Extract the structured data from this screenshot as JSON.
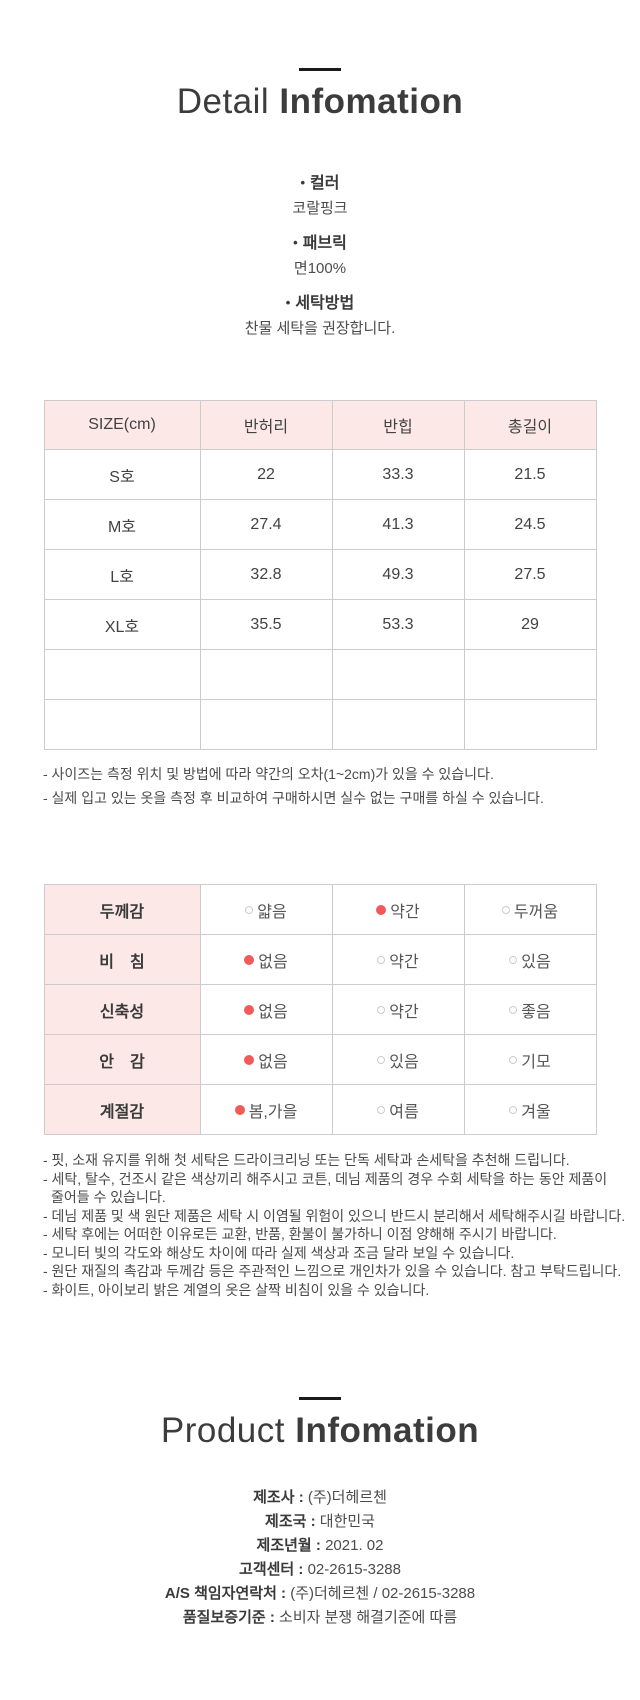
{
  "detail": {
    "title_light": "Detail",
    "title_bold": "Infomation",
    "bullet": "•",
    "specs": [
      {
        "label": "컬러",
        "value": "코랄핑크"
      },
      {
        "label": "패브릭",
        "value": "면100%"
      },
      {
        "label": "세탁방법",
        "value": "찬물 세탁을 권장합니다."
      }
    ],
    "size_table": {
      "headers": [
        "SIZE(cm)",
        "반허리",
        "반힙",
        "총길이"
      ],
      "rows": [
        [
          "S호",
          "22",
          "33.3",
          "21.5"
        ],
        [
          "M호",
          "27.4",
          "41.3",
          "24.5"
        ],
        [
          "L호",
          "32.8",
          "49.3",
          "27.5"
        ],
        [
          "XL호",
          "35.5",
          "53.3",
          "29"
        ],
        [
          "",
          "",
          "",
          ""
        ],
        [
          "",
          "",
          "",
          ""
        ]
      ]
    },
    "size_notes": [
      "- 사이즈는 측정 위치 및 방법에 따라 약간의 오차(1~2cm)가 있을 수 있습니다.",
      "- 실제 입고 있는 옷을 측정 후 비교하여 구매하시면 실수 없는 구매를 하실 수 있습니다."
    ],
    "attributes": [
      {
        "label": "두께감",
        "options": [
          {
            "text": "얇음",
            "selected": false
          },
          {
            "text": "약간",
            "selected": true
          },
          {
            "text": "두꺼움",
            "selected": false
          }
        ]
      },
      {
        "label": "비　침",
        "options": [
          {
            "text": "없음",
            "selected": true
          },
          {
            "text": "약간",
            "selected": false
          },
          {
            "text": "있음",
            "selected": false
          }
        ]
      },
      {
        "label": "신축성",
        "options": [
          {
            "text": "없음",
            "selected": true
          },
          {
            "text": "약간",
            "selected": false
          },
          {
            "text": "좋음",
            "selected": false
          }
        ]
      },
      {
        "label": "안　감",
        "options": [
          {
            "text": "없음",
            "selected": true
          },
          {
            "text": "있음",
            "selected": false
          },
          {
            "text": "기모",
            "selected": false
          }
        ]
      },
      {
        "label": "계절감",
        "options": [
          {
            "text": "봄,가을",
            "selected": true
          },
          {
            "text": "여름",
            "selected": false
          },
          {
            "text": "겨울",
            "selected": false
          }
        ]
      }
    ],
    "care_notes": [
      "- 핏, 소재 유지를 위해 첫 세탁은 드라이크리닝 또는 단독 세탁과 손세탁을 추천해 드립니다.",
      "- 세탁, 탈수, 건조시 같은 색상끼리 해주시고 코튼, 데님 제품의 경우 수회 세탁을 하는 동안 제품이 줄어들 수 있습니다.",
      "- 데님 제품 및 색 원단 제품은 세탁 시 이염될 위험이 있으니 반드시 분리해서 세탁해주시길 바랍니다.",
      "- 세탁 후에는 어떠한 이유로든 교환, 반품, 환불이 불가하니 이점 양해해 주시기 바랍니다.",
      "- 모니터 빛의 각도와 해상도 차이에 따라 실제 색상과 조금 달라 보일 수 있습니다.",
      "- 원단 재질의 촉감과 두께감 등은 주관적인 느낌으로 개인차가 있을 수 있습니다. 참고 부탁드립니다.",
      "- 화이트, 아이보리 밝은 계열의 옷은 살짝 비침이 있을 수 있습니다."
    ]
  },
  "product": {
    "title_light": "Product",
    "title_bold": "Infomation",
    "fields": [
      {
        "label": "제조사 :",
        "value": "(주)더헤르첸"
      },
      {
        "label": "제조국 :",
        "value": "대한민국"
      },
      {
        "label": "제조년월 :",
        "value": "2021. 02"
      },
      {
        "label": "고객센터 :",
        "value": "02-2615-3288"
      },
      {
        "label": "A/S 책임자연락처 :",
        "value": "(주)더헤르첸 / 02-2615-3288"
      },
      {
        "label": "품질보증기준 :",
        "value": "소비자 분쟁 해결기준에 따름"
      }
    ]
  },
  "colors": {
    "header_pink": "#fce9e7",
    "selected_red": "#f25a5a",
    "border_gray": "#cccccc"
  }
}
